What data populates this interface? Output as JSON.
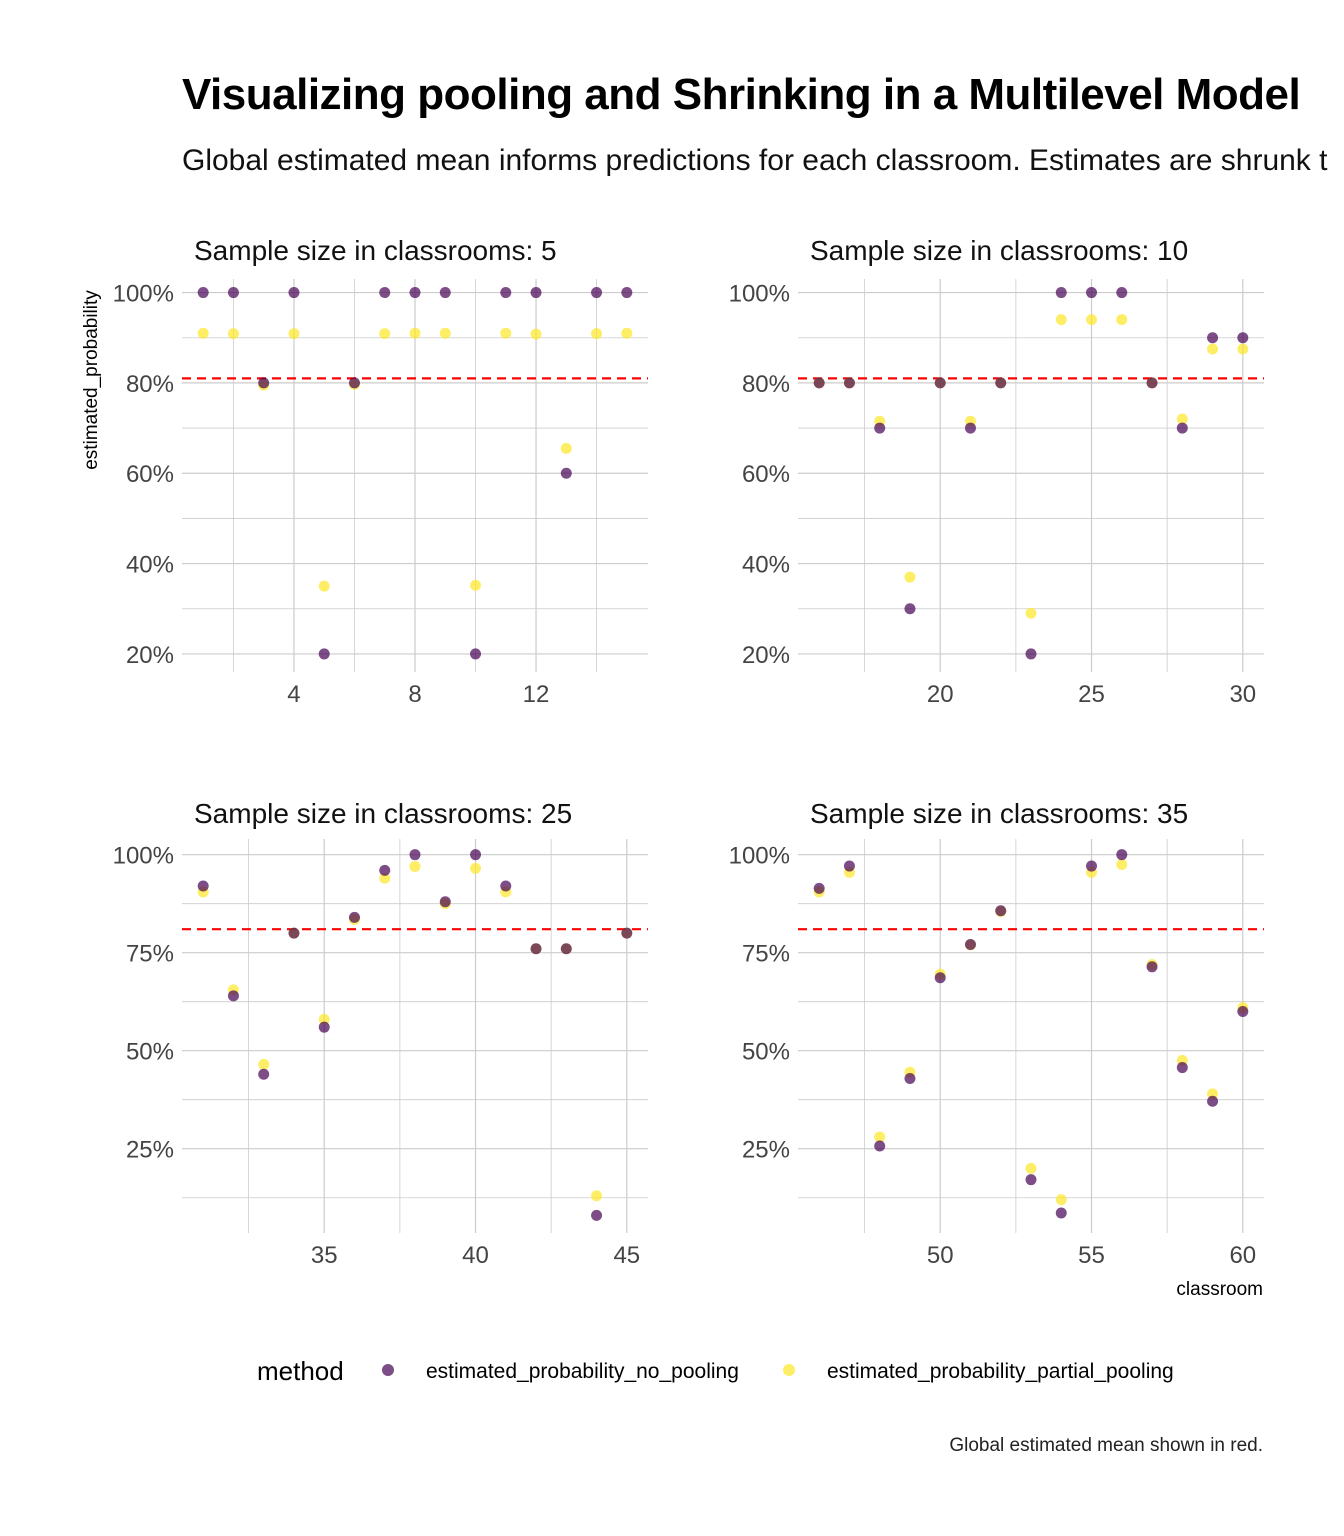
{
  "title": "Visualizing pooling and Shrinking in a Multilevel Model",
  "subtitle": "Global estimated mean informs predictions for each classroom. Estimates are shrunk t",
  "caption": "Global estimated mean shown in red.",
  "colors": {
    "no_pooling": "#440154",
    "partial_pooling": "#FDE725",
    "global_mean": "#FF0000",
    "grid": "#cccccc"
  },
  "chart_data": {
    "type": "scatter",
    "xlabel": "classroom",
    "ylabel": "estimated_probability",
    "legend": {
      "title": "method",
      "position": "bottom",
      "entries": [
        "estimated_probability_no_pooling",
        "estimated_probability_partial_pooling"
      ]
    },
    "global_mean": 0.81,
    "grid": true,
    "facets": [
      {
        "title": "Sample size in classrooms: 5",
        "xlim": [
          0.3,
          15.7
        ],
        "ylim": [
          0.16,
          1.03
        ],
        "x_ticks": [
          4,
          8,
          12
        ],
        "y_ticks": [
          0.2,
          0.4,
          0.6,
          0.8,
          1.0
        ],
        "y_tick_labels": [
          "20%",
          "40%",
          "60%",
          "80%",
          "100%"
        ],
        "x": [
          1,
          2,
          3,
          4,
          5,
          6,
          7,
          8,
          9,
          10,
          11,
          12,
          13,
          14,
          15
        ],
        "series": [
          {
            "name": "estimated_probability_no_pooling",
            "values": [
              1.0,
              1.0,
              0.8,
              1.0,
              0.2,
              0.8,
              1.0,
              1.0,
              1.0,
              0.2,
              1.0,
              1.0,
              0.6,
              1.0,
              1.0
            ]
          },
          {
            "name": "estimated_probability_partial_pooling",
            "values": [
              0.91,
              0.909,
              0.795,
              0.909,
              0.35,
              0.797,
              0.909,
              0.91,
              0.91,
              0.352,
              0.91,
              0.908,
              0.655,
              0.909,
              0.91
            ]
          }
        ]
      },
      {
        "title": "Sample size in classrooms: 10",
        "xlim": [
          15.3,
          30.7
        ],
        "ylim": [
          0.16,
          1.03
        ],
        "x_ticks": [
          20,
          25,
          30
        ],
        "y_ticks": [
          0.2,
          0.4,
          0.6,
          0.8,
          1.0
        ],
        "y_tick_labels": [
          "20%",
          "40%",
          "60%",
          "80%",
          "100%"
        ],
        "x": [
          16,
          17,
          18,
          19,
          20,
          21,
          22,
          23,
          24,
          25,
          26,
          27,
          28,
          29,
          30
        ],
        "series": [
          {
            "name": "estimated_probability_no_pooling",
            "values": [
              0.8,
              0.8,
              0.7,
              0.3,
              0.8,
              0.7,
              0.8,
              0.2,
              1.0,
              1.0,
              1.0,
              0.8,
              0.7,
              0.9,
              0.9
            ]
          },
          {
            "name": "estimated_probability_partial_pooling",
            "values": [
              0.8,
              0.8,
              0.715,
              0.37,
              0.8,
              0.715,
              0.8,
              0.29,
              0.94,
              0.94,
              0.94,
              0.8,
              0.72,
              0.875,
              0.875
            ]
          }
        ]
      },
      {
        "title": "Sample size in classrooms: 25",
        "xlim": [
          30.3,
          45.7
        ],
        "ylim": [
          0.035,
          1.04
        ],
        "x_ticks": [
          35,
          40,
          45
        ],
        "y_ticks": [
          0.25,
          0.5,
          0.75,
          1.0
        ],
        "y_tick_labels": [
          "25%",
          "50%",
          "75%",
          "100%"
        ],
        "x": [
          31,
          32,
          33,
          34,
          35,
          36,
          37,
          38,
          39,
          40,
          41,
          42,
          43,
          44,
          45
        ],
        "series": [
          {
            "name": "estimated_probability_no_pooling",
            "values": [
              0.92,
              0.64,
              0.44,
              0.8,
              0.56,
              0.84,
              0.96,
              1.0,
              0.88,
              1.0,
              0.92,
              0.76,
              0.76,
              0.08,
              0.8
            ]
          },
          {
            "name": "estimated_probability_partial_pooling",
            "values": [
              0.905,
              0.655,
              0.465,
              0.8,
              0.58,
              0.835,
              0.94,
              0.97,
              0.875,
              0.965,
              0.905,
              0.76,
              0.76,
              0.13,
              0.8
            ]
          }
        ]
      },
      {
        "title": "Sample size in classrooms: 35",
        "xlim": [
          45.3,
          60.7
        ],
        "ylim": [
          0.035,
          1.04
        ],
        "x_ticks": [
          50,
          55,
          60
        ],
        "y_ticks": [
          0.25,
          0.5,
          0.75,
          1.0
        ],
        "y_tick_labels": [
          "25%",
          "50%",
          "75%",
          "100%"
        ],
        "x": [
          46,
          47,
          48,
          49,
          50,
          51,
          52,
          53,
          54,
          55,
          56,
          57,
          58,
          59,
          60
        ],
        "series": [
          {
            "name": "estimated_probability_no_pooling",
            "values": [
              0.914,
              0.971,
              0.257,
              0.429,
              0.686,
              0.771,
              0.857,
              0.171,
              0.086,
              0.971,
              1.0,
              0.714,
              0.457,
              0.371,
              0.6
            ]
          },
          {
            "name": "estimated_probability_partial_pooling",
            "values": [
              0.905,
              0.955,
              0.28,
              0.445,
              0.695,
              0.77,
              0.855,
              0.2,
              0.12,
              0.955,
              0.975,
              0.72,
              0.475,
              0.39,
              0.61
            ]
          }
        ]
      }
    ]
  }
}
